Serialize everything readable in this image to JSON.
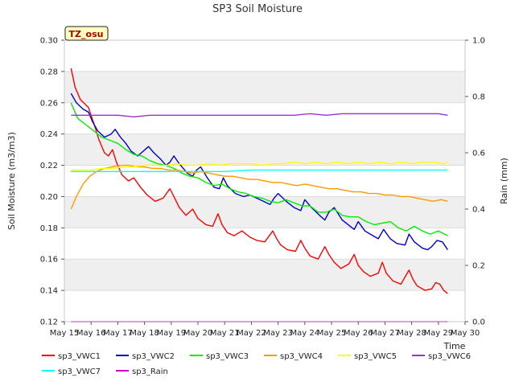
{
  "chart_data": {
    "type": "line",
    "title": "SP3 Soil Moisture",
    "xlabel": "Time",
    "ylabel": "Soil Moisture (m3/m3)",
    "ylabel_right": "Rain (mm)",
    "badge": "TZ_osu",
    "xlim": [
      15,
      30
    ],
    "ylim": [
      0.12,
      0.3
    ],
    "ylim_right": [
      0.0,
      1.0
    ],
    "x_ticks": [
      15,
      16,
      17,
      18,
      19,
      20,
      21,
      22,
      23,
      24,
      25,
      26,
      27,
      28,
      29,
      30
    ],
    "x_tick_labels": [
      "May 15",
      "May 16",
      "May 17",
      "May 18",
      "May 19",
      "May 20",
      "May 21",
      "May 22",
      "May 23",
      "May 24",
      "May 25",
      "May 26",
      "May 27",
      "May 28",
      "May 29",
      "May 30"
    ],
    "y_ticks": [
      0.12,
      0.14,
      0.16,
      0.18,
      0.2,
      0.22,
      0.24,
      0.26,
      0.28,
      0.3
    ],
    "y_tick_labels": [
      "0.12",
      "0.14",
      "0.16",
      "0.18",
      "0.20",
      "0.22",
      "0.24",
      "0.26",
      "0.28",
      "0.30"
    ],
    "y_ticks_right": [
      0.0,
      0.2,
      0.4,
      0.6,
      0.8,
      1.0
    ],
    "y_tick_labels_right": [
      "0.0",
      "0.2",
      "0.4",
      "0.6",
      "0.8",
      "1.0"
    ],
    "series": [
      {
        "name": "sp3_VWC1",
        "color": "#ff0000",
        "axis": "left",
        "x": [
          15.25,
          15.4,
          15.6,
          15.9,
          16.1,
          16.3,
          16.5,
          16.65,
          16.8,
          16.95,
          17.15,
          17.4,
          17.6,
          17.85,
          18.1,
          18.4,
          18.7,
          18.95,
          19.1,
          19.3,
          19.55,
          19.8,
          20.0,
          20.3,
          20.55,
          20.75,
          20.9,
          21.1,
          21.35,
          21.65,
          21.95,
          22.2,
          22.5,
          22.8,
          22.95,
          23.1,
          23.35,
          23.65,
          23.85,
          24.0,
          24.2,
          24.5,
          24.75,
          24.9,
          25.1,
          25.35,
          25.65,
          25.85,
          26.0,
          26.2,
          26.45,
          26.75,
          26.9,
          27.05,
          27.3,
          27.6,
          27.9,
          28.05,
          28.2,
          28.5,
          28.75,
          28.9,
          29.05,
          29.2,
          29.35
        ],
        "values": [
          0.282,
          0.27,
          0.262,
          0.257,
          0.247,
          0.236,
          0.228,
          0.226,
          0.23,
          0.222,
          0.214,
          0.21,
          0.212,
          0.206,
          0.201,
          0.197,
          0.199,
          0.205,
          0.2,
          0.193,
          0.188,
          0.192,
          0.186,
          0.182,
          0.181,
          0.189,
          0.182,
          0.177,
          0.175,
          0.178,
          0.174,
          0.172,
          0.171,
          0.178,
          0.173,
          0.169,
          0.166,
          0.165,
          0.172,
          0.167,
          0.162,
          0.16,
          0.168,
          0.163,
          0.158,
          0.154,
          0.157,
          0.163,
          0.156,
          0.152,
          0.149,
          0.151,
          0.158,
          0.151,
          0.146,
          0.144,
          0.153,
          0.147,
          0.143,
          0.14,
          0.141,
          0.145,
          0.144,
          0.14,
          0.138
        ]
      },
      {
        "name": "sp3_VWC2",
        "color": "#0000cc",
        "axis": "left",
        "x": [
          15.25,
          15.45,
          15.7,
          15.9,
          16.05,
          16.25,
          16.5,
          16.75,
          16.9,
          17.1,
          17.3,
          17.5,
          17.75,
          17.95,
          18.15,
          18.35,
          18.6,
          18.8,
          18.95,
          19.1,
          19.3,
          19.6,
          19.8,
          19.95,
          20.1,
          20.35,
          20.6,
          20.8,
          20.95,
          21.1,
          21.4,
          21.7,
          21.95,
          22.2,
          22.45,
          22.7,
          22.85,
          23.0,
          23.3,
          23.6,
          23.85,
          24.0,
          24.25,
          24.55,
          24.75,
          24.9,
          25.1,
          25.4,
          25.7,
          25.85,
          26.0,
          26.25,
          26.55,
          26.75,
          26.95,
          27.2,
          27.45,
          27.75,
          27.9,
          28.1,
          28.4,
          28.6,
          28.75,
          28.95,
          29.15,
          29.35
        ],
        "values": [
          0.266,
          0.26,
          0.256,
          0.254,
          0.248,
          0.242,
          0.238,
          0.24,
          0.243,
          0.238,
          0.234,
          0.229,
          0.226,
          0.229,
          0.232,
          0.228,
          0.224,
          0.22,
          0.222,
          0.226,
          0.221,
          0.215,
          0.213,
          0.217,
          0.219,
          0.212,
          0.206,
          0.205,
          0.212,
          0.207,
          0.202,
          0.2,
          0.201,
          0.199,
          0.197,
          0.195,
          0.199,
          0.202,
          0.197,
          0.193,
          0.191,
          0.198,
          0.193,
          0.188,
          0.185,
          0.19,
          0.193,
          0.185,
          0.181,
          0.179,
          0.184,
          0.178,
          0.175,
          0.173,
          0.179,
          0.173,
          0.17,
          0.169,
          0.176,
          0.171,
          0.167,
          0.166,
          0.168,
          0.172,
          0.171,
          0.166
        ]
      },
      {
        "name": "sp3_VWC3",
        "color": "#00ee00",
        "axis": "left",
        "x": [
          15.25,
          15.5,
          15.8,
          16.1,
          16.4,
          16.7,
          17.0,
          17.3,
          17.6,
          17.9,
          18.2,
          18.5,
          18.8,
          19.1,
          19.4,
          19.7,
          20.0,
          20.3,
          20.6,
          20.9,
          21.2,
          21.5,
          21.8,
          22.1,
          22.4,
          22.7,
          23.0,
          23.3,
          23.6,
          23.9,
          24.2,
          24.5,
          24.8,
          25.1,
          25.4,
          25.7,
          26.0,
          26.3,
          26.6,
          26.9,
          27.2,
          27.5,
          27.8,
          28.1,
          28.4,
          28.7,
          29.0,
          29.35
        ],
        "values": [
          0.26,
          0.25,
          0.246,
          0.242,
          0.238,
          0.236,
          0.234,
          0.23,
          0.227,
          0.226,
          0.223,
          0.221,
          0.22,
          0.218,
          0.215,
          0.213,
          0.212,
          0.209,
          0.207,
          0.208,
          0.205,
          0.203,
          0.202,
          0.2,
          0.199,
          0.197,
          0.196,
          0.198,
          0.196,
          0.194,
          0.194,
          0.19,
          0.19,
          0.192,
          0.188,
          0.187,
          0.187,
          0.184,
          0.182,
          0.183,
          0.184,
          0.18,
          0.178,
          0.181,
          0.178,
          0.176,
          0.178,
          0.175
        ]
      },
      {
        "name": "sp3_VWC4",
        "color": "#ff9900",
        "axis": "left",
        "x": [
          15.25,
          15.45,
          15.7,
          15.95,
          16.2,
          16.5,
          16.8,
          17.1,
          17.4,
          17.7,
          18.0,
          18.3,
          18.6,
          18.9,
          19.2,
          19.5,
          19.8,
          20.1,
          20.4,
          20.7,
          21.0,
          21.3,
          21.6,
          21.9,
          22.2,
          22.5,
          22.8,
          23.1,
          23.4,
          23.7,
          24.0,
          24.3,
          24.6,
          24.9,
          25.2,
          25.5,
          25.8,
          26.1,
          26.4,
          26.7,
          27.0,
          27.3,
          27.6,
          27.9,
          28.2,
          28.5,
          28.8,
          29.1,
          29.35
        ],
        "values": [
          0.192,
          0.2,
          0.208,
          0.213,
          0.216,
          0.218,
          0.219,
          0.22,
          0.22,
          0.219,
          0.219,
          0.218,
          0.218,
          0.217,
          0.217,
          0.216,
          0.215,
          0.216,
          0.215,
          0.214,
          0.213,
          0.213,
          0.212,
          0.211,
          0.211,
          0.21,
          0.209,
          0.209,
          0.208,
          0.207,
          0.208,
          0.207,
          0.206,
          0.205,
          0.205,
          0.204,
          0.203,
          0.203,
          0.202,
          0.202,
          0.201,
          0.201,
          0.2,
          0.2,
          0.199,
          0.198,
          0.197,
          0.198,
          0.197
        ]
      },
      {
        "name": "sp3_VWC5",
        "color": "#ffff00",
        "axis": "left",
        "x": [
          15.25,
          15.6,
          16.0,
          16.4,
          16.8,
          17.2,
          17.6,
          18.0,
          18.4,
          18.8,
          19.2,
          19.6,
          20.0,
          20.4,
          20.8,
          21.2,
          21.6,
          22.0,
          22.4,
          22.8,
          23.2,
          23.6,
          24.0,
          24.4,
          24.8,
          25.2,
          25.6,
          26.0,
          26.4,
          26.8,
          27.2,
          27.6,
          28.0,
          28.4,
          28.8,
          29.2,
          29.35
        ],
        "values": [
          0.217,
          0.217,
          0.217,
          0.218,
          0.218,
          0.219,
          0.219,
          0.22,
          0.22,
          0.22,
          0.221,
          0.22,
          0.22,
          0.221,
          0.22,
          0.221,
          0.221,
          0.221,
          0.22,
          0.221,
          0.221,
          0.222,
          0.221,
          0.222,
          0.221,
          0.222,
          0.221,
          0.222,
          0.221,
          0.222,
          0.221,
          0.222,
          0.221,
          0.222,
          0.222,
          0.221,
          0.222
        ]
      },
      {
        "name": "sp3_VWC6",
        "color": "#9933cc",
        "axis": "left",
        "x": [
          15.25,
          15.8,
          16.4,
          17.0,
          17.6,
          18.2,
          18.8,
          19.4,
          20.0,
          20.6,
          21.2,
          21.8,
          22.4,
          23.0,
          23.6,
          24.2,
          24.8,
          25.4,
          26.0,
          26.6,
          27.2,
          27.8,
          28.4,
          29.0,
          29.35
        ],
        "values": [
          0.252,
          0.252,
          0.252,
          0.252,
          0.251,
          0.252,
          0.252,
          0.252,
          0.252,
          0.252,
          0.252,
          0.252,
          0.252,
          0.252,
          0.252,
          0.253,
          0.252,
          0.253,
          0.253,
          0.253,
          0.253,
          0.253,
          0.253,
          0.253,
          0.252
        ]
      },
      {
        "name": "sp3_VWC7",
        "color": "#00ffff",
        "axis": "left",
        "x": [
          15.25,
          16.0,
          17.0,
          18.0,
          19.0,
          20.0,
          21.0,
          22.0,
          23.0,
          24.0,
          25.0,
          26.0,
          27.0,
          28.0,
          29.0,
          29.35
        ],
        "values": [
          0.216,
          0.216,
          0.216,
          0.216,
          0.216,
          0.216,
          0.216,
          0.217,
          0.217,
          0.217,
          0.217,
          0.217,
          0.217,
          0.217,
          0.217,
          0.217
        ]
      },
      {
        "name": "sp3_Rain",
        "color": "#cc00cc",
        "axis": "right",
        "x": [
          15.25,
          29.35
        ],
        "values": [
          0.0,
          0.0
        ]
      }
    ]
  }
}
